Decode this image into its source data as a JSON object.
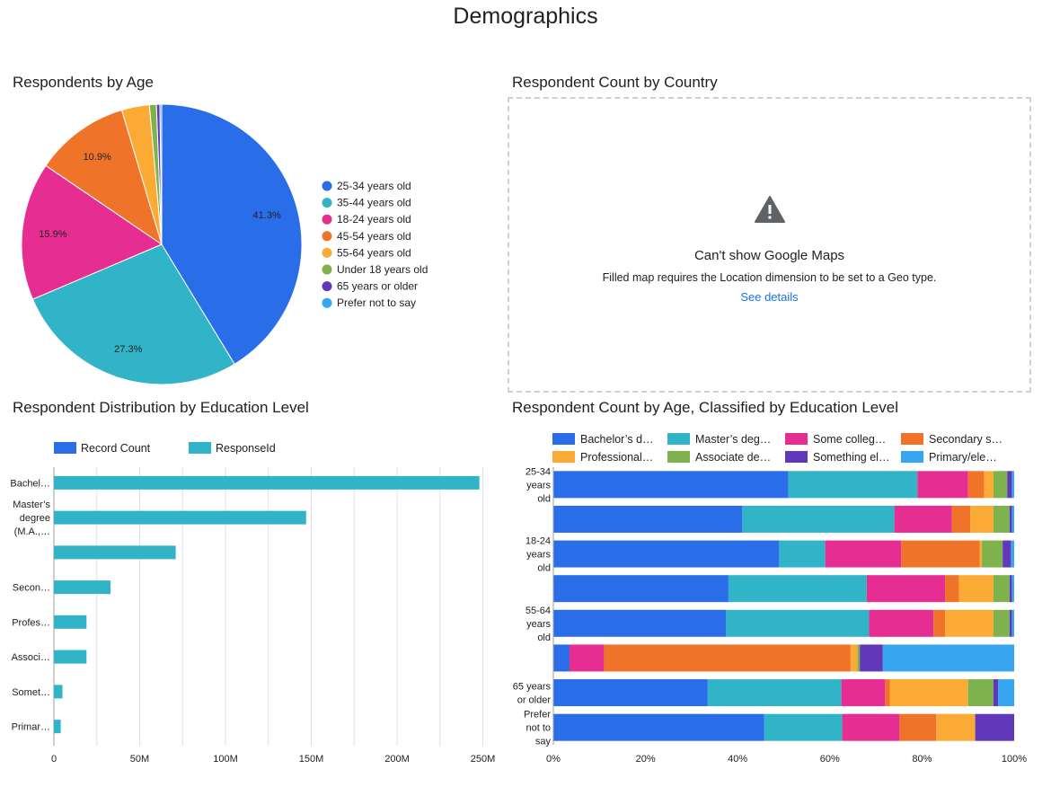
{
  "page": {
    "title": "Demographics"
  },
  "colors": {
    "blue": "#2a6de9",
    "teal": "#32b4c8",
    "pink": "#e62e92",
    "orange": "#ef742a",
    "yellow": "#fbaa35",
    "green": "#7db24d",
    "purple": "#6138ba",
    "lightblue": "#35a6ef",
    "link": "#1a73e8",
    "grid": "#e0e0e0",
    "text": "#202124"
  },
  "map_card": {
    "title": "Respondent Count by Country",
    "icon": "warning-triangle-icon",
    "heading": "Can't show Google Maps",
    "message": "Filled map requires the Location dimension to be set to a Geo type.",
    "link": "See details"
  },
  "chart_data": [
    {
      "type": "pie",
      "title": "Respondents by Age",
      "legend_position": "right",
      "categories": [
        "25-34 years old",
        "35-44 years old",
        "18-24 years old",
        "45-54 years old",
        "55-64 years old",
        "Under 18 years old",
        "65 years or older",
        "Prefer not to say"
      ],
      "values": [
        41.3,
        27.3,
        15.9,
        10.9,
        3.2,
        0.8,
        0.4,
        0.2
      ],
      "labels": [
        "41.3%",
        "27.3%",
        "15.9%",
        "10.9%",
        "",
        "",
        "",
        ""
      ],
      "colors": [
        "#2a6de9",
        "#32b4c8",
        "#e62e92",
        "#ef742a",
        "#fbaa35",
        "#7db24d",
        "#6138ba",
        "#35a6ef"
      ]
    },
    {
      "type": "bar",
      "orientation": "horizontal",
      "title": "Respondent Distribution by Education Level",
      "legend_position": "top",
      "legend": [
        "Record Count",
        "ResponseId"
      ],
      "legend_colors": [
        "#2a6de9",
        "#32b4c8"
      ],
      "categories": [
        "Bachel…",
        "Master’s degree (M.A.,…",
        "",
        "Secon…",
        "Profes…",
        "Associ…",
        "Somet…",
        "Primar…"
      ],
      "series": [
        {
          "name": "Record Count",
          "values": [
            0,
            0,
            0,
            0,
            0,
            0,
            0,
            0
          ]
        },
        {
          "name": "ResponseId",
          "values": [
            248000000,
            147000000,
            71000000,
            33000000,
            19000000,
            19000000,
            5000000,
            4000000
          ]
        }
      ],
      "x_ticks": [
        "0",
        "50M",
        "100M",
        "150M",
        "200M",
        "250M"
      ],
      "xlim": [
        0,
        250000000
      ],
      "grid": true
    },
    {
      "type": "bar",
      "orientation": "horizontal",
      "stacked": "percent",
      "title": "Respondent Count by Age, Classified by Education Level",
      "legend_position": "top",
      "legend": [
        "Bachelor’s d…",
        "Master’s deg…",
        "Some colleg…",
        "Secondary s…",
        "Professional…",
        "Associate de…",
        "Something el…",
        "Primary/ele…"
      ],
      "categories": [
        "25-34 years old",
        "",
        "18-24 years old",
        "",
        "55-64 years old",
        "",
        "65 years or older",
        "Prefer not to say"
      ],
      "series": [
        {
          "name": "Bachelor’s d…",
          "values": [
            51,
            41,
            49,
            38,
            37.5,
            3.5,
            33.5,
            46
          ]
        },
        {
          "name": "Master’s deg…",
          "values": [
            28,
            33,
            10,
            30,
            31,
            0,
            29,
            17
          ]
        },
        {
          "name": "Some colleg…",
          "values": [
            11,
            12.5,
            16.5,
            17,
            14,
            7.5,
            9.5,
            12.5
          ]
        },
        {
          "name": "Secondary s…",
          "values": [
            3.5,
            4,
            17,
            3,
            2.5,
            53.5,
            1,
            8
          ]
        },
        {
          "name": "Professional…",
          "values": [
            2,
            5,
            0.5,
            7.5,
            10.5,
            1.5,
            17,
            8.5
          ]
        },
        {
          "name": "Associate de…",
          "values": [
            3,
            3.5,
            4.5,
            3.5,
            3.5,
            0.5,
            5.5,
            0
          ]
        },
        {
          "name": "Something el…",
          "values": [
            1,
            0.5,
            1.8,
            0.5,
            0.5,
            5,
            1,
            8.5
          ]
        },
        {
          "name": "Primary/ele…",
          "values": [
            0.5,
            0.5,
            0.7,
            0.5,
            0.5,
            28.5,
            3.5,
            0
          ]
        }
      ],
      "x_ticks": [
        "0%",
        "20%",
        "40%",
        "60%",
        "80%",
        "100%"
      ],
      "xlim": [
        0,
        100
      ]
    }
  ]
}
